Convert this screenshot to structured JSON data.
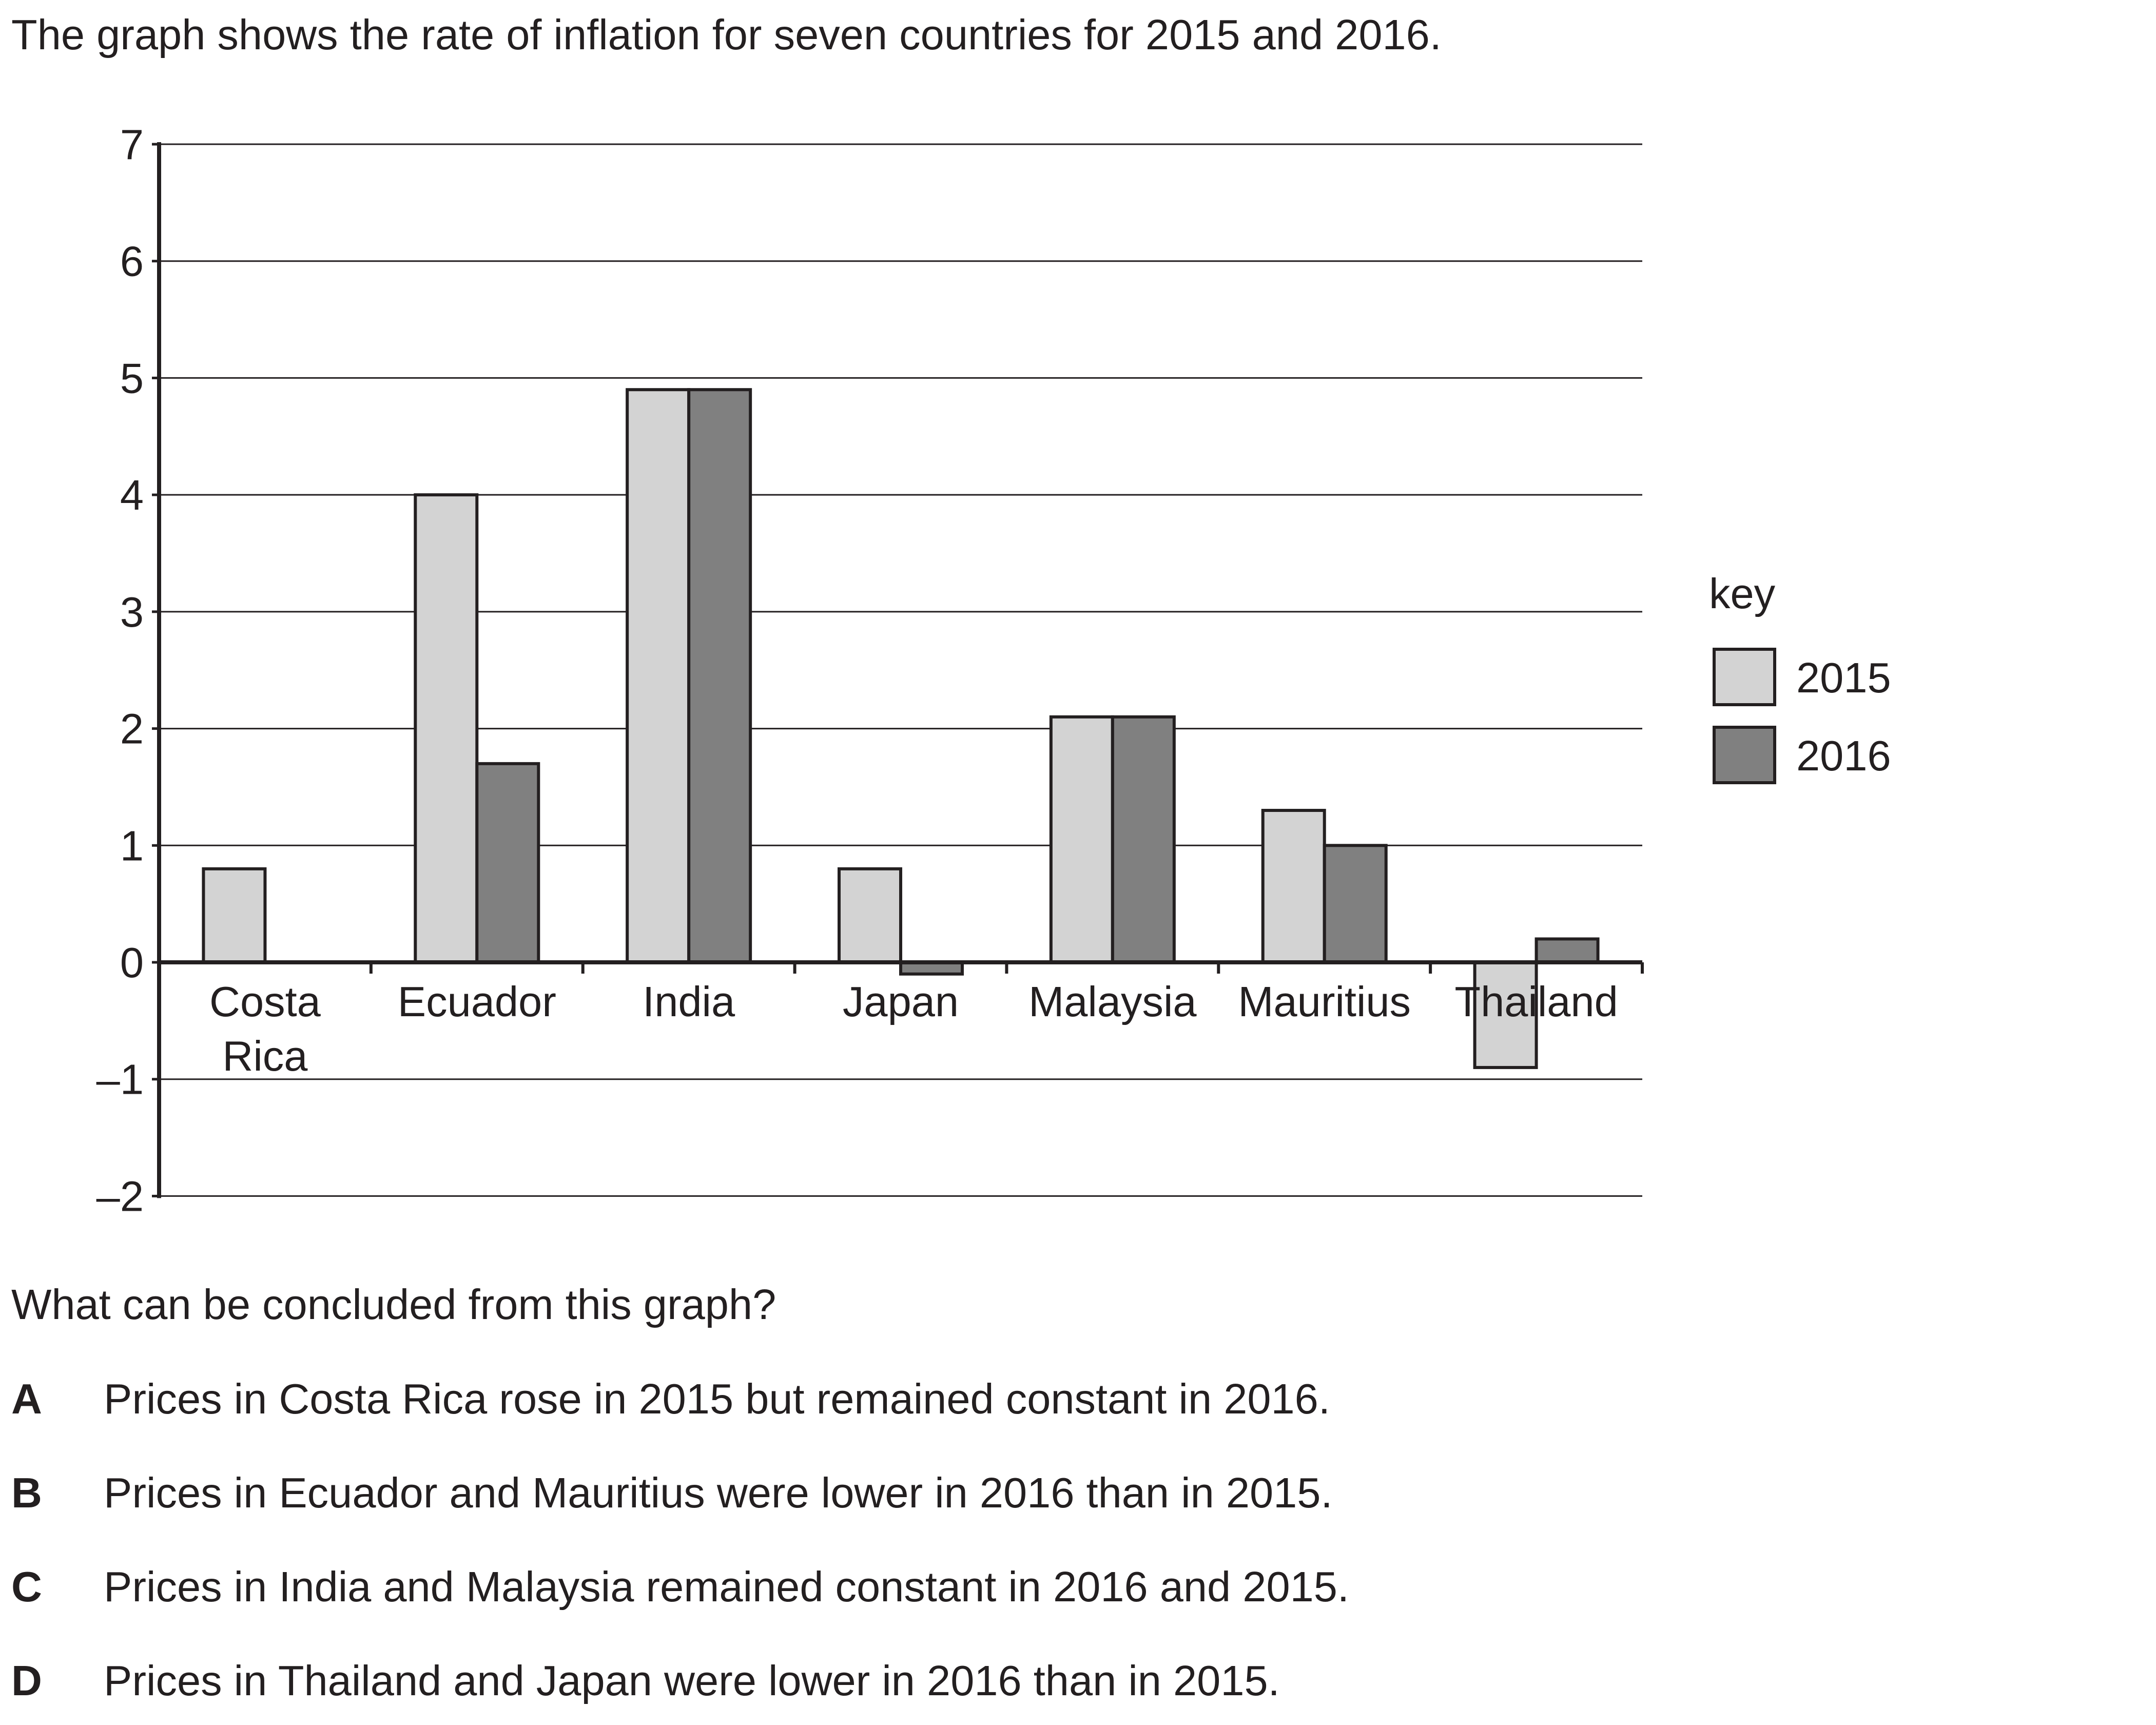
{
  "intro": "The graph shows the rate of inflation for seven countries for 2015 and 2016.",
  "question": "What can be concluded from this graph?",
  "options": [
    {
      "letter": "A",
      "text": "Prices in Costa Rica rose in 2015 but remained constant in 2016."
    },
    {
      "letter": "B",
      "text": "Prices in Ecuador and Mauritius were lower in 2016 than in 2015."
    },
    {
      "letter": "C",
      "text": "Prices in India and Malaysia remained constant in 2016 and 2015."
    },
    {
      "letter": "D",
      "text": "Prices in Thailand and Japan were lower in 2016 than in 2015."
    }
  ],
  "colors": {
    "series_2015": "#d3d3d3",
    "series_2016": "#808080",
    "axis": "#231f20"
  },
  "chart_data": {
    "type": "bar",
    "categories": [
      "Costa Rica",
      "Ecuador",
      "India",
      "Japan",
      "Malaysia",
      "Mauritius",
      "Thailand"
    ],
    "category_lines": [
      [
        "Costa",
        "Rica"
      ],
      [
        "Ecuador"
      ],
      [
        "India"
      ],
      [
        "Japan"
      ],
      [
        "Malaysia"
      ],
      [
        "Mauritius"
      ],
      [
        "Thailand"
      ]
    ],
    "series": [
      {
        "name": "2015",
        "values": [
          0.8,
          4.0,
          4.9,
          0.8,
          2.1,
          1.3,
          -0.9
        ]
      },
      {
        "name": "2016",
        "values": [
          0.0,
          1.7,
          4.9,
          -0.1,
          2.1,
          1.0,
          0.2
        ]
      }
    ],
    "yticks": [
      "7",
      "6",
      "5",
      "4",
      "3",
      "2",
      "1",
      "0",
      "–1",
      "–2"
    ],
    "ylim": [
      -2,
      7
    ],
    "grid": true,
    "legend": {
      "title": "key",
      "position": "right"
    }
  }
}
